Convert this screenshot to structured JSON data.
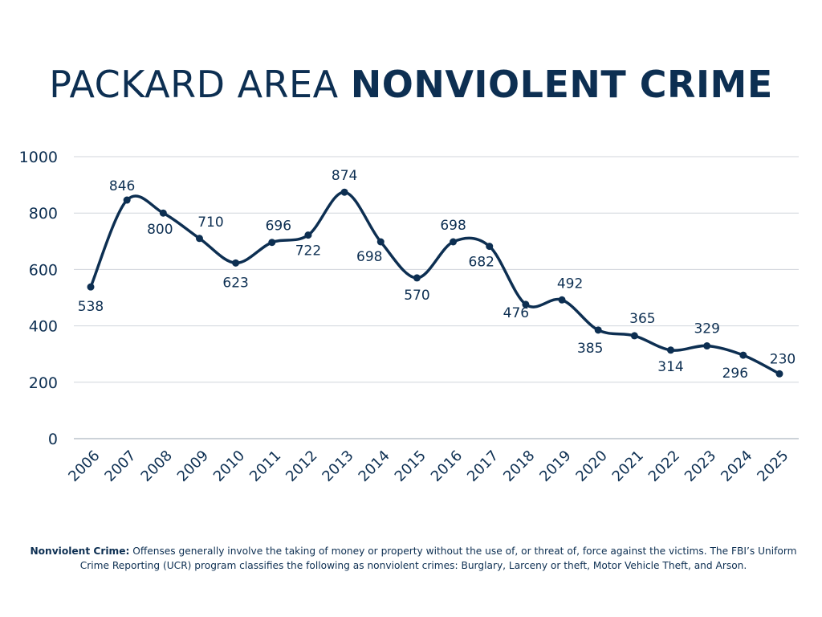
{
  "title": {
    "regular": "PACKARD AREA ",
    "bold": "NONVIOLENT CRIME"
  },
  "chart_data": {
    "type": "line",
    "title": "PACKARD AREA NONVIOLENT CRIME",
    "xlabel": "",
    "ylabel": "",
    "categories": [
      "2006",
      "2007",
      "2008",
      "2009",
      "2010",
      "2011",
      "2012",
      "2013",
      "2014",
      "2015",
      "2016",
      "2017",
      "2018",
      "2019",
      "2020",
      "2021",
      "2022",
      "2023",
      "2024",
      "2025"
    ],
    "values": [
      538,
      846,
      800,
      710,
      623,
      696,
      722,
      874,
      698,
      570,
      698,
      682,
      476,
      492,
      385,
      365,
      314,
      329,
      296,
      230
    ],
    "ylim": [
      0,
      1000
    ],
    "yticks": [
      0,
      200,
      400,
      600,
      800,
      1000
    ],
    "grid": true,
    "smooth": true,
    "data_labels": true,
    "legend": "none",
    "colors": {
      "line": "#0d2f52",
      "grid": "#d0d5db",
      "text": "#0d2f52"
    }
  },
  "footnote": {
    "term": "Nonviolent Crime:",
    "text": " Offenses generally involve the taking of money or property without the use of, or threat of, force against the victims. The FBI’s Uniform Crime Reporting (UCR) program classifies the following as nonviolent crimes: Burglary, Larceny or theft, Motor Vehicle Theft, and Arson."
  }
}
